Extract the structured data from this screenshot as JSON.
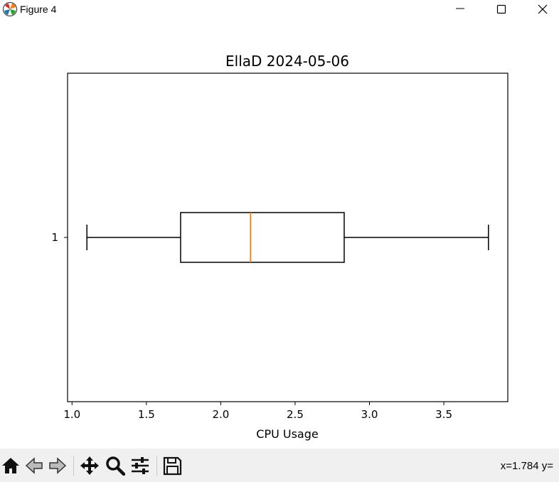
{
  "window": {
    "title": "Figure 4",
    "icon": "matplotlib-icon",
    "controls": [
      "minimize-icon",
      "maximize-icon",
      "close-icon"
    ]
  },
  "toolbar": {
    "tools": [
      "home-icon",
      "back-arrow-icon",
      "forward-arrow-icon",
      "pan-icon",
      "zoom-icon",
      "configure-subplots-icon",
      "save-icon"
    ],
    "coords": "x=1.784 y="
  },
  "chart_data": {
    "type": "boxplot",
    "orientation": "horizontal",
    "title": "EllaD 2024-05-06",
    "xlabel": "CPU Usage",
    "ylabel": "",
    "xlim": [
      0.97,
      3.93
    ],
    "xticks": [
      "1.0",
      "1.5",
      "2.0",
      "2.5",
      "3.0",
      "3.5"
    ],
    "xtick_values": [
      1.0,
      1.5,
      2.0,
      2.5,
      3.0,
      3.5
    ],
    "yticks": [
      "1"
    ],
    "grid": false,
    "boxes": [
      {
        "position": 1,
        "whisker_low": 1.1,
        "q1": 1.73,
        "median": 2.2,
        "q3": 2.83,
        "whisker_high": 3.8
      }
    ],
    "colors": {
      "box": "#000000",
      "median": "#ff7f0e"
    }
  }
}
